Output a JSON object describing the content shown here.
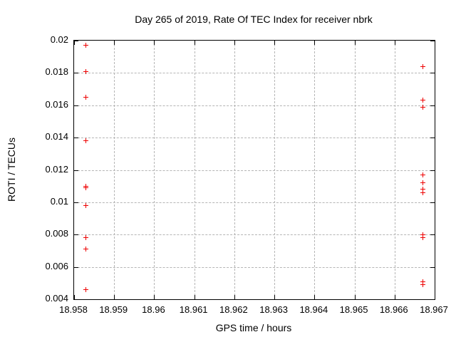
{
  "chart_data": {
    "type": "scatter",
    "title": "Day 265 of 2019, Rate Of TEC Index for receiver nbrk",
    "xlabel": "GPS time / hours",
    "ylabel": "ROTI / TECUs",
    "xlim": [
      18.958,
      18.967
    ],
    "ylim": [
      0.004,
      0.02
    ],
    "x_ticks": [
      18.958,
      18.959,
      18.96,
      18.961,
      18.962,
      18.963,
      18.964,
      18.965,
      18.966,
      18.967
    ],
    "x_tick_labels": [
      "18.958",
      "18.959",
      "18.96",
      "18.961",
      "18.962",
      "18.963",
      "18.964",
      "18.965",
      "18.966",
      "18.967"
    ],
    "y_ticks": [
      0.004,
      0.006,
      0.008,
      0.01,
      0.012,
      0.014,
      0.016,
      0.018,
      0.02
    ],
    "y_tick_labels": [
      "0.004",
      "0.006",
      "0.008",
      "0.01",
      "0.012",
      "0.014",
      "0.016",
      "0.018",
      "0.02"
    ],
    "grid": true,
    "legend": "none",
    "marker": {
      "shape": "plus",
      "color": "#ee0000",
      "size": 7
    },
    "series": [
      {
        "name": "ROTI",
        "points": [
          [
            18.9583,
            0.0197
          ],
          [
            18.9583,
            0.0181
          ],
          [
            18.9583,
            0.0165
          ],
          [
            18.9583,
            0.0138
          ],
          [
            18.9583,
            0.011
          ],
          [
            18.9583,
            0.0109
          ],
          [
            18.9583,
            0.0098
          ],
          [
            18.9583,
            0.0078
          ],
          [
            18.9583,
            0.0071
          ],
          [
            18.9583,
            0.0046
          ],
          [
            18.9667,
            0.0184
          ],
          [
            18.9667,
            0.0163
          ],
          [
            18.9667,
            0.0159
          ],
          [
            18.9667,
            0.0117
          ],
          [
            18.9667,
            0.0112
          ],
          [
            18.9667,
            0.0108
          ],
          [
            18.9667,
            0.0106
          ],
          [
            18.9667,
            0.008
          ],
          [
            18.9667,
            0.0078
          ],
          [
            18.9667,
            0.0051
          ],
          [
            18.9667,
            0.0049
          ]
        ]
      }
    ]
  }
}
